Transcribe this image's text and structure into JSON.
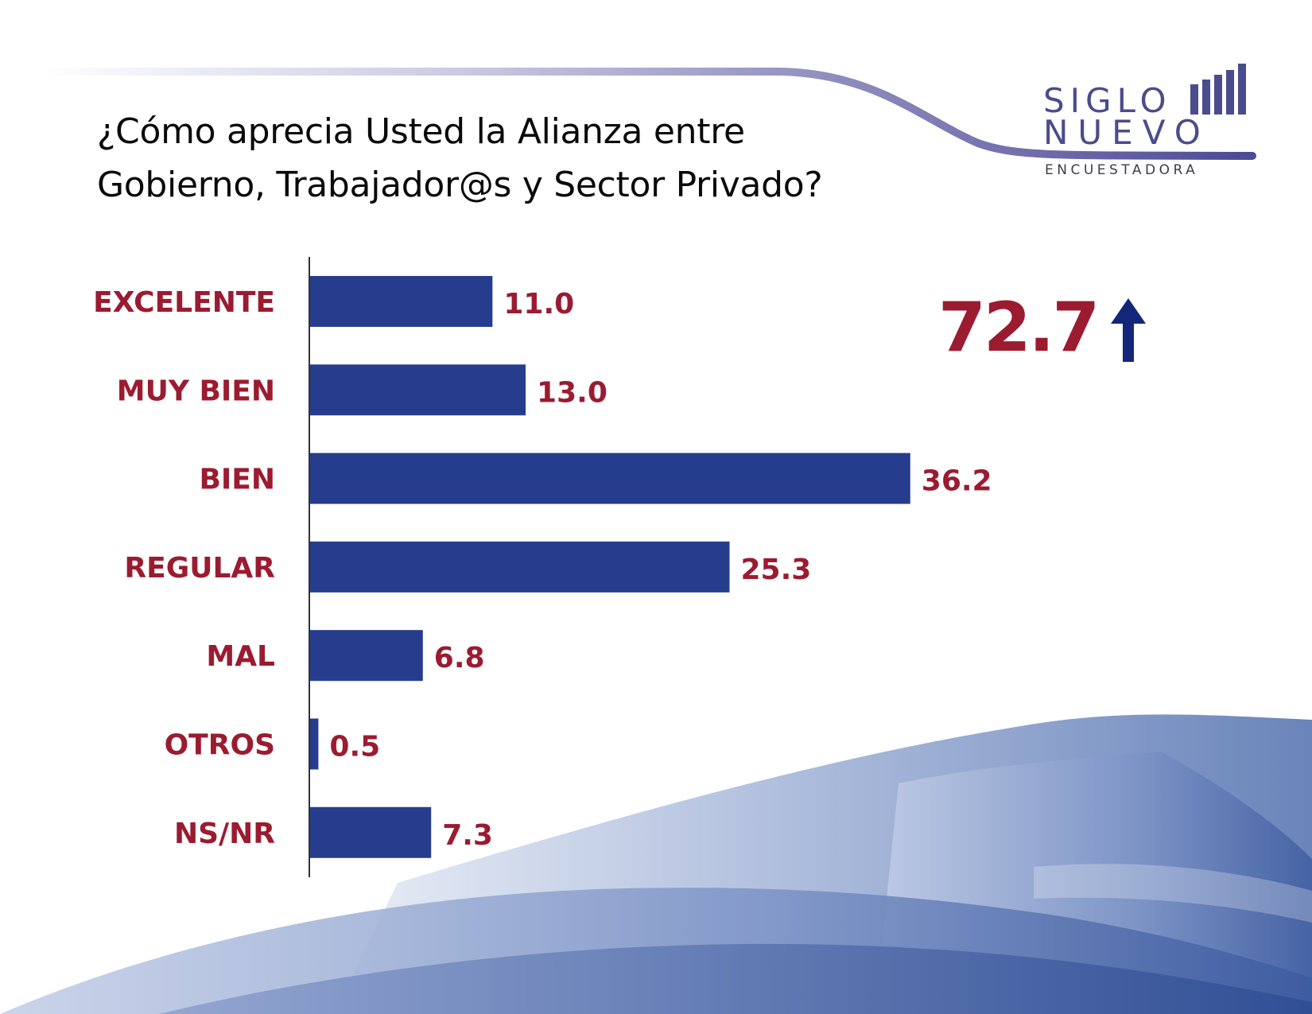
{
  "title": {
    "line1": "¿Cómo aprecia Usted la Alianza entre",
    "line2": "Gobierno, Trabajador@s  y Sector Privado?"
  },
  "logo": {
    "line1": "SIGLO",
    "line2": "NUEVO",
    "line3": "ENCUESTADORA"
  },
  "highlight": {
    "value": "72.7",
    "icon": "up-arrow-icon"
  },
  "colors": {
    "bar": "#263d8e",
    "label": "#9b1b30",
    "logo": "#4a4c8c"
  },
  "chart_data": {
    "type": "bar",
    "orientation": "horizontal",
    "categories": [
      "EXCELENTE",
      "MUY BIEN",
      "BIEN",
      "REGULAR",
      "MAL",
      "OTROS",
      "NS/NR"
    ],
    "values": [
      11.0,
      13.0,
      36.2,
      25.3,
      6.8,
      0.5,
      7.3
    ],
    "value_labels": [
      "11.0",
      "13.0",
      "36.2",
      "25.3",
      "6.8",
      "0.5",
      "7.3"
    ],
    "xlim": [
      0,
      40
    ],
    "grid": false,
    "legend": "none"
  }
}
